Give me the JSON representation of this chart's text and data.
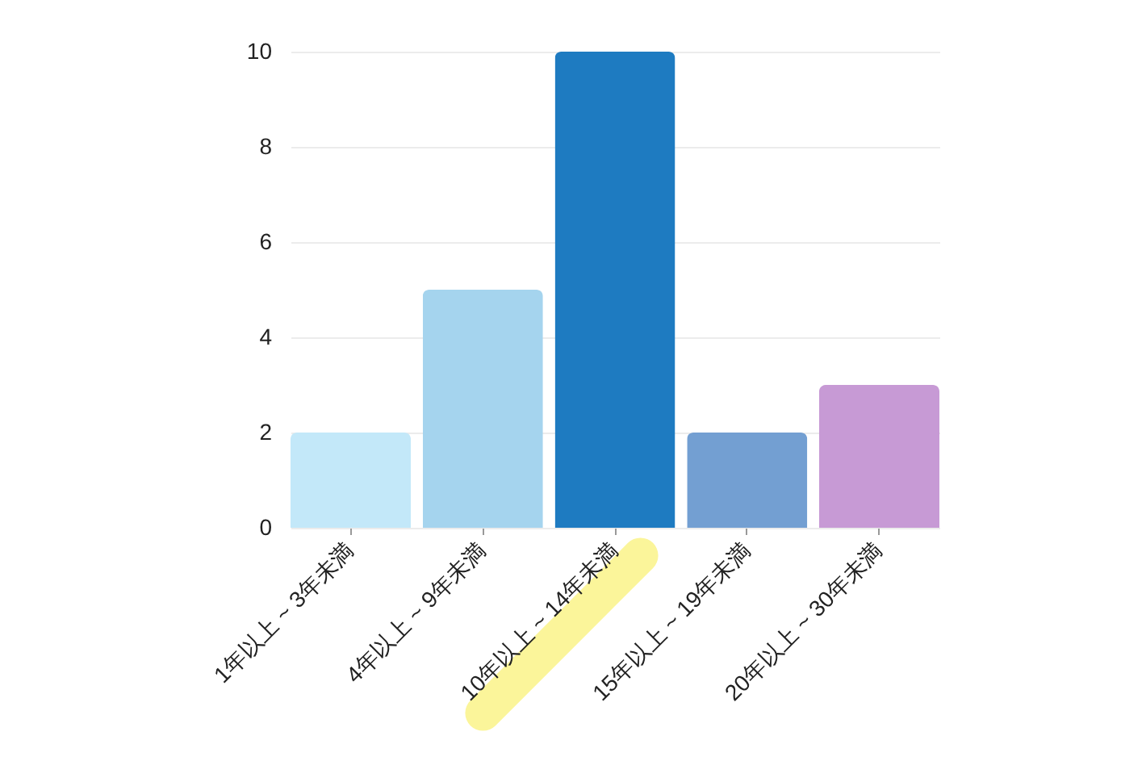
{
  "chart_data": {
    "type": "bar",
    "categories": [
      "1年以上 ~ 3年未満",
      "4年以上 ~ 9年未満",
      "10年以上 ~ 14年未満",
      "15年以上 ~ 19年未満",
      "20年以上 ~ 30年未満"
    ],
    "values": [
      2,
      5,
      10,
      2,
      3
    ],
    "colors": [
      "#c3e8f9",
      "#a5d4ee",
      "#1e7bc1",
      "#739fd2",
      "#c79ad5"
    ],
    "ylim": [
      0,
      10
    ],
    "yticks": [
      0,
      2,
      4,
      6,
      8,
      10
    ],
    "grid": "y",
    "legend": false
  }
}
